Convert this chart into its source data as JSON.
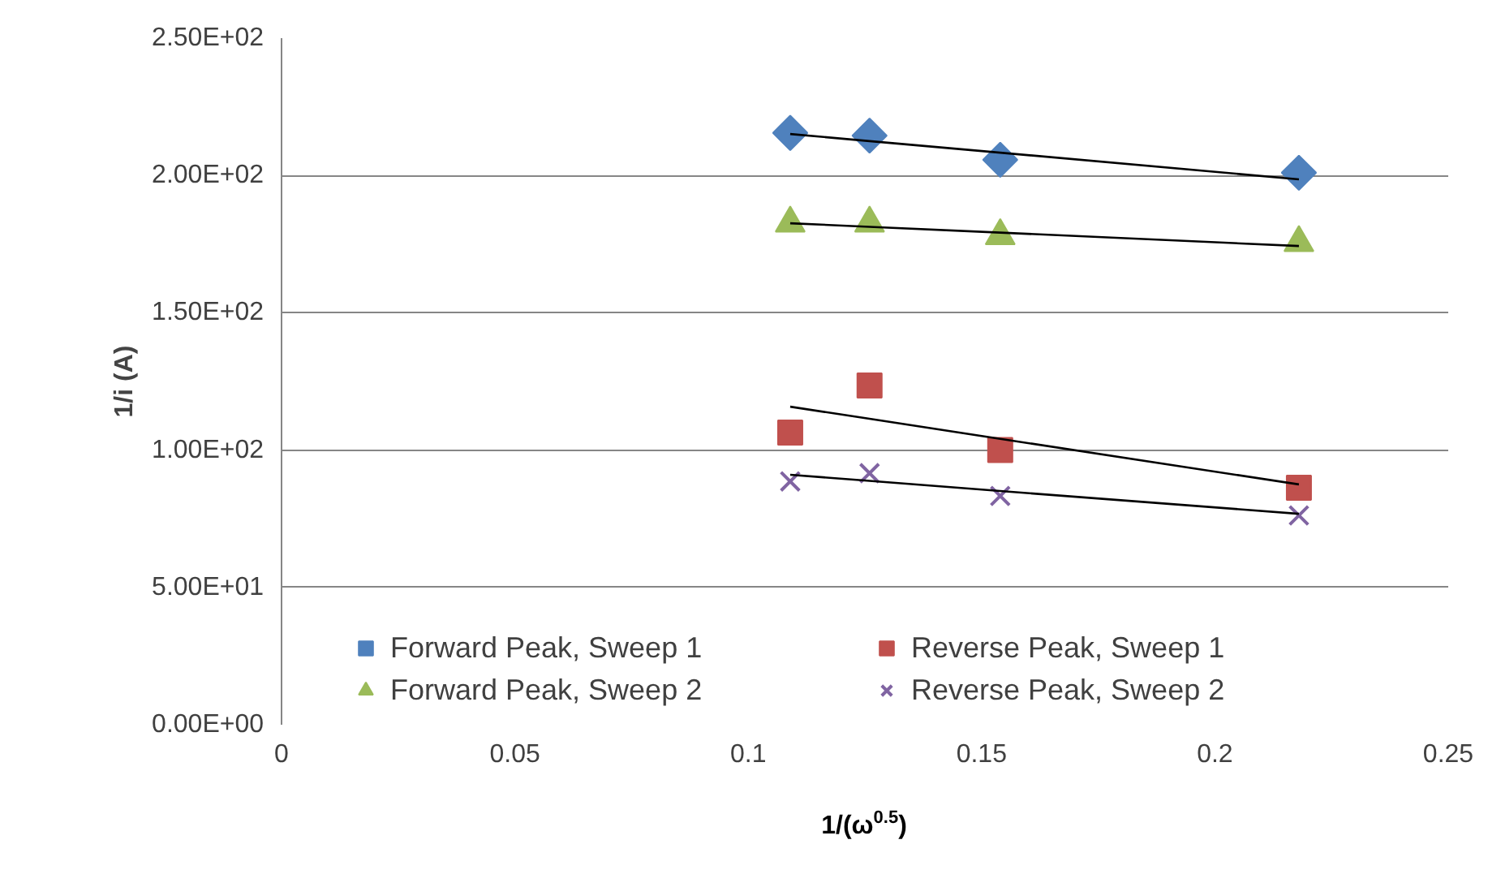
{
  "chart_data": {
    "type": "scatter",
    "xlabel": "1/(ω$^{0.5}$)",
    "ylabel": "1/i (A)",
    "x": [
      0.109,
      0.126,
      0.154,
      0.218
    ],
    "series": [
      {
        "name": "Forward Peak, Sweep 1",
        "color": "#4f81bd",
        "marker": "diamond",
        "values": [
          215.5,
          214.5,
          205.7,
          201
        ]
      },
      {
        "name": "Reverse Peak, Sweep 1",
        "color": "#c0504d",
        "marker": "square",
        "values": [
          106.4,
          123.5,
          100,
          86.3
        ]
      },
      {
        "name": "Forward Peak, Sweep 2",
        "color": "#9bbb59",
        "marker": "triangle",
        "values": [
          182.6,
          182.6,
          178,
          175.5
        ]
      },
      {
        "name": "Reverse Peak, Sweep 2",
        "color": "#8064a2",
        "marker": "cross",
        "values": [
          88.6,
          91.6,
          83.3,
          76.2
        ]
      },
      {
        "type": "line",
        "color": "#000000",
        "values": [
          215.1,
          212.5,
          208.3,
          198.6
        ]
      },
      {
        "type": "line",
        "color": "#000000",
        "values": [
          182.6,
          181.3,
          179.2,
          174.3
        ]
      },
      {
        "type": "line",
        "color": "#000000",
        "values": [
          115.8,
          111.4,
          104.1,
          87.5
        ]
      },
      {
        "type": "line",
        "color": "#000000",
        "values": [
          91,
          88.8,
          85.1,
          76.8
        ]
      }
    ],
    "xlim": [
      0,
      0.25
    ],
    "xticks": [
      0,
      0.05,
      0.1,
      0.15,
      0.2,
      0.25
    ],
    "ylim": [
      0,
      250
    ],
    "yticks": [
      {
        "value": 0,
        "label": "0.00E+00"
      },
      {
        "value": 50,
        "label": "5.00E+01"
      },
      {
        "value": 100,
        "label": "1.00E+02"
      },
      {
        "value": 150,
        "label": "1.50E+02"
      },
      {
        "value": 200,
        "label": "2.00E+02"
      },
      {
        "value": 250,
        "label": "2.50E+02"
      }
    ],
    "grid": "y",
    "legend": "bottom"
  }
}
